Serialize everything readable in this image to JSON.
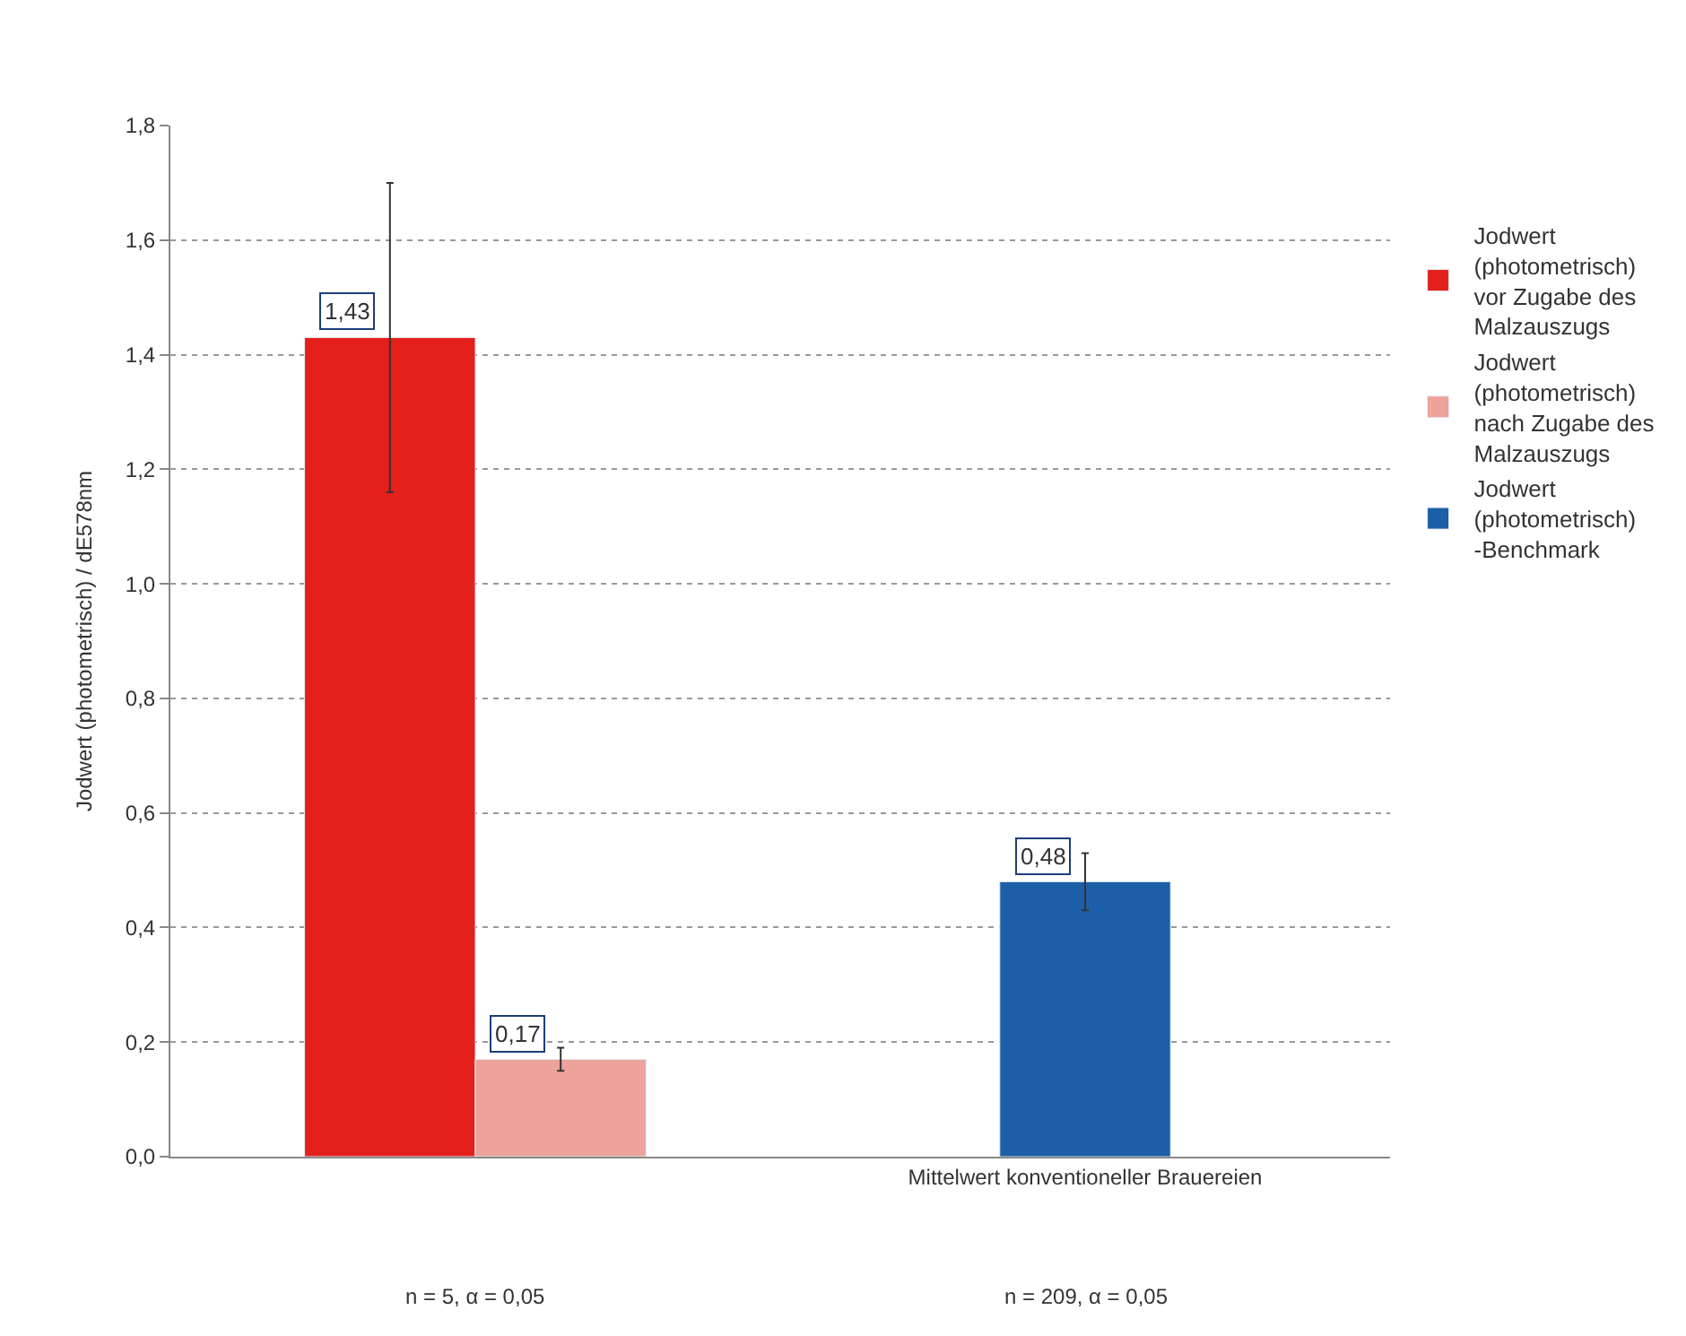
{
  "chart_data": {
    "type": "bar",
    "ylabel": "Jodwert (photometrisch) / dE578nm",
    "categories": [
      null,
      "Mittelwert konventioneller Brauereien"
    ],
    "series": [
      {
        "name": "Jodwert (photometrisch) vor Zugabe des Malzauszugs",
        "color": "#e3201b",
        "values": [
          1.43,
          null
        ],
        "errors": [
          0.27,
          null
        ],
        "value_labels": [
          "1,43",
          null
        ]
      },
      {
        "name": "Jodwert (photometrisch) nach Zugabe des Malzauszugs",
        "color": "#eda29b",
        "values": [
          0.17,
          null
        ],
        "errors": [
          0.02,
          null
        ],
        "value_labels": [
          "0,17",
          null
        ]
      },
      {
        "name": "Jodwert (photometrisch) -Benchmark",
        "color": "#1c5ea8",
        "values": [
          null,
          0.48
        ],
        "errors": [
          null,
          0.05
        ],
        "value_labels": [
          null,
          "0,48"
        ]
      }
    ],
    "annotations": [
      "n = 5, α = 0,05",
      "n = 209, α = 0,05"
    ],
    "ylim": [
      0,
      1.8
    ],
    "yticks": [
      {
        "value": 0,
        "label": "0,0"
      },
      {
        "value": 0.2,
        "label": "0,2"
      },
      {
        "value": 0.4,
        "label": "0,4"
      },
      {
        "value": 0.6,
        "label": "0,6"
      },
      {
        "value": 0.8,
        "label": "0,8"
      },
      {
        "value": 1.0,
        "label": "1,0"
      },
      {
        "value": 1.2,
        "label": "1,2"
      },
      {
        "value": 1.4,
        "label": "1,4"
      },
      {
        "value": 1.6,
        "label": "1,6"
      },
      {
        "value": 1.8,
        "label": "1,8"
      }
    ],
    "grid": "y",
    "legend": "right"
  }
}
